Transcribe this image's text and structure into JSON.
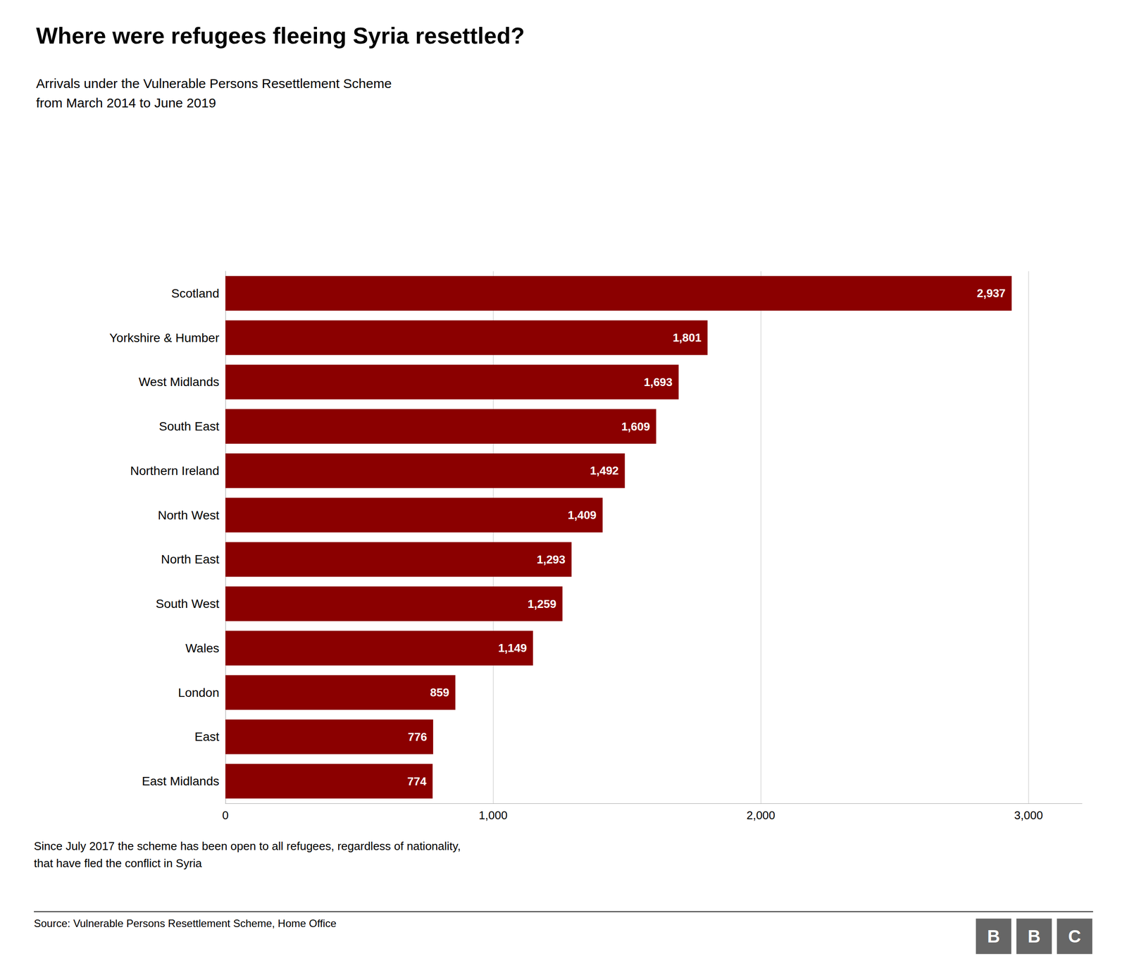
{
  "chart_data": {
    "type": "bar",
    "orientation": "horizontal",
    "title": "Where were refugees fleeing Syria resettled?",
    "subtitle": "Arrivals under the Vulnerable Persons Resettlement Scheme\nfrom March 2014 to June 2019",
    "footnote": "Since July 2017 the scheme has been open to all refugees, regardless of nationality,\nthat have fled the conflict in Syria",
    "source": "Source: Vulnerable Persons Resettlement Scheme, Home Office",
    "annotations": [
      "BBC"
    ],
    "categories": [
      "Scotland",
      "Yorkshire & Humber",
      "West Midlands",
      "South East",
      "Northern Ireland",
      "North West",
      "North East",
      "South West",
      "Wales",
      "London",
      "East",
      "East Midlands"
    ],
    "values": [
      2937,
      1801,
      1693,
      1609,
      1492,
      1409,
      1293,
      1259,
      1149,
      859,
      776,
      774
    ],
    "value_labels": [
      "2,937",
      "1,801",
      "1,693",
      "1,609",
      "1,492",
      "1,409",
      "1,293",
      "1,259",
      "1,149",
      "859",
      "776",
      "774"
    ],
    "data_labels": true,
    "color": "#8B0000",
    "xlim": [
      0,
      3200
    ],
    "xticks": [
      0,
      {
        "value": 1000,
        "label": "1,000"
      },
      {
        "value": 2000,
        "label": "2,000"
      },
      {
        "value": 3000,
        "label": "3,000"
      }
    ],
    "grid": true
  }
}
